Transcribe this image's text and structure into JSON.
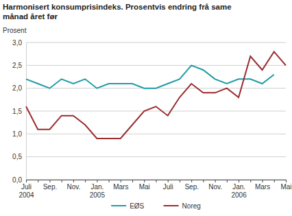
{
  "chart_data": {
    "type": "line",
    "title": "Harmonisert konsumprisindeks. Prosentvis endring frå same månad året før",
    "y_label": "Prosent",
    "categories": [
      "Juli 2004",
      null,
      "Sep.",
      null,
      "Nov.",
      null,
      "Jan. 2005",
      null,
      "Mars",
      null,
      "Mai",
      null,
      "Juli",
      null,
      "Sep.",
      null,
      "Nov.",
      null,
      "Jan. 2006",
      null,
      "Mars",
      null,
      "Mai"
    ],
    "series": [
      {
        "name": "EØS",
        "color": "#1f9aa6",
        "values": [
          2.2,
          2.1,
          2.0,
          2.2,
          2.1,
          2.2,
          2.0,
          2.1,
          2.1,
          2.1,
          2.0,
          2.0,
          2.1,
          2.2,
          2.5,
          2.4,
          2.2,
          2.1,
          2.2,
          2.2,
          2.1,
          2.3,
          null
        ]
      },
      {
        "name": "Noreg",
        "color": "#9a2b2e",
        "values": [
          1.6,
          1.1,
          1.1,
          1.4,
          1.4,
          1.2,
          0.9,
          0.9,
          0.9,
          1.2,
          1.5,
          1.6,
          1.4,
          1.8,
          2.1,
          1.9,
          1.9,
          2.0,
          1.8,
          2.7,
          2.4,
          2.8,
          2.5
        ]
      }
    ],
    "ylim": [
      0,
      3
    ],
    "yticks": [
      {
        "value": 0,
        "label": "0,0"
      },
      {
        "value": 0.5,
        "label": "0,5"
      },
      {
        "value": 1,
        "label": "1,0"
      },
      {
        "value": 1.5,
        "label": "1,5"
      },
      {
        "value": 2,
        "label": "2,0"
      },
      {
        "value": 2.5,
        "label": "2,5"
      },
      {
        "value": 3,
        "label": "3,0"
      }
    ],
    "grid": true,
    "legend": "bottom"
  }
}
